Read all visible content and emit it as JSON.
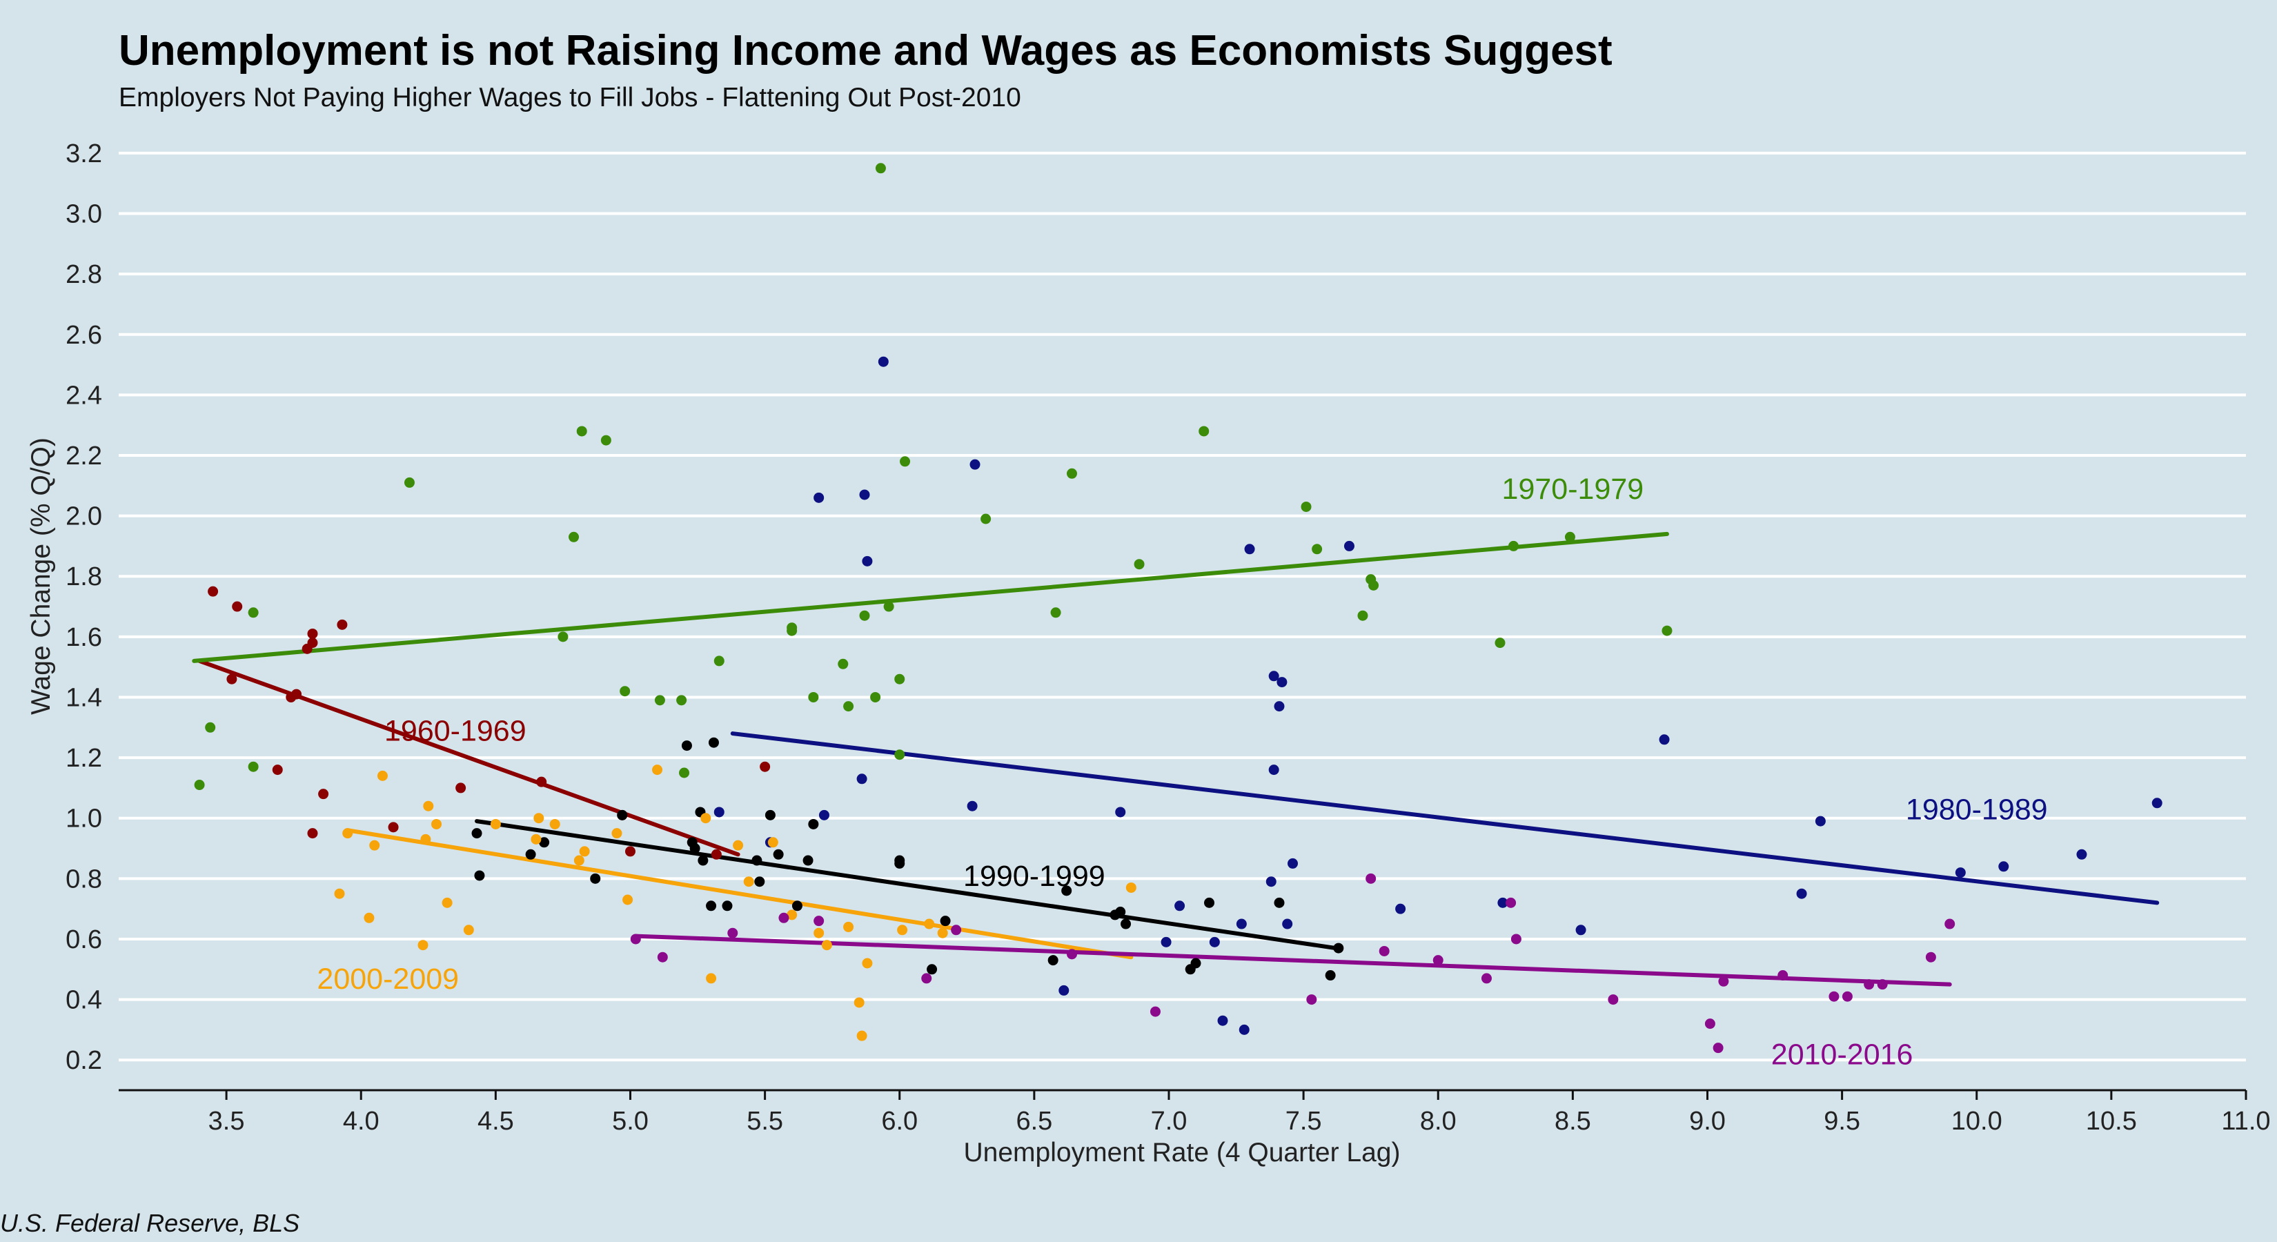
{
  "title": "Unemployment is not Raising Income and Wages as Economists Suggest",
  "subtitle": "Employers Not Paying Higher Wages to Fill Jobs - Flattening Out Post-2010",
  "source": "U.S. Federal Reserve, BLS",
  "chart_data": {
    "type": "scatter",
    "xlabel": "Unemployment Rate (4 Quarter Lag)",
    "ylabel": "Wage Change (% Q/Q)",
    "xlim": [
      3.1,
      11.0
    ],
    "ylim": [
      0.1,
      3.25
    ],
    "xticks": [
      "3.5",
      "4.0",
      "4.5",
      "5.0",
      "5.5",
      "6.0",
      "6.5",
      "7.0",
      "7.5",
      "8.0",
      "8.5",
      "9.0",
      "9.5",
      "10.0",
      "10.5",
      "11.0"
    ],
    "yticks": [
      "0.2",
      "0.4",
      "0.6",
      "0.8",
      "1.0",
      "1.2",
      "1.4",
      "1.6",
      "1.8",
      "2.0",
      "2.2",
      "2.4",
      "2.6",
      "2.8",
      "3.0",
      "3.2"
    ],
    "grid": "horizontal",
    "legend": "none",
    "series": [
      {
        "name": "1960-1969",
        "color": "#8b0000",
        "label_pos": [
          4.35,
          1.29
        ],
        "trend": [
          [
            3.4,
            1.52
          ],
          [
            5.4,
            0.88
          ]
        ],
        "points": [
          [
            3.45,
            1.75
          ],
          [
            3.52,
            1.46
          ],
          [
            3.54,
            1.7
          ],
          [
            3.69,
            1.16
          ],
          [
            3.74,
            1.4
          ],
          [
            3.76,
            1.41
          ],
          [
            3.8,
            1.56
          ],
          [
            3.82,
            1.58
          ],
          [
            3.82,
            1.61
          ],
          [
            3.82,
            0.95
          ],
          [
            3.86,
            1.08
          ],
          [
            3.93,
            1.64
          ],
          [
            4.12,
            0.97
          ],
          [
            4.37,
            1.1
          ],
          [
            4.67,
            1.12
          ],
          [
            4.97,
            1.01
          ],
          [
            5.0,
            0.89
          ],
          [
            5.32,
            0.88
          ],
          [
            5.5,
            1.17
          ]
        ]
      },
      {
        "name": "1970-1979",
        "color": "#3c8c0a",
        "label_pos": [
          8.5,
          2.09
        ],
        "trend": [
          [
            3.38,
            1.52
          ],
          [
            8.85,
            1.94
          ]
        ],
        "points": [
          [
            3.4,
            1.11
          ],
          [
            3.44,
            1.3
          ],
          [
            3.6,
            1.68
          ],
          [
            3.6,
            1.17
          ],
          [
            4.18,
            2.11
          ],
          [
            4.75,
            1.6
          ],
          [
            4.79,
            1.93
          ],
          [
            4.82,
            2.28
          ],
          [
            4.91,
            2.25
          ],
          [
            4.98,
            1.42
          ],
          [
            5.11,
            1.39
          ],
          [
            5.19,
            1.39
          ],
          [
            5.2,
            1.15
          ],
          [
            5.33,
            1.52
          ],
          [
            5.6,
            1.63
          ],
          [
            5.6,
            1.62
          ],
          [
            5.68,
            1.4
          ],
          [
            5.79,
            1.51
          ],
          [
            5.81,
            1.37
          ],
          [
            5.87,
            1.67
          ],
          [
            5.91,
            1.4
          ],
          [
            5.93,
            3.15
          ],
          [
            5.96,
            1.7
          ],
          [
            6.0,
            1.46
          ],
          [
            6.0,
            1.21
          ],
          [
            6.02,
            2.18
          ],
          [
            6.32,
            1.99
          ],
          [
            6.58,
            1.68
          ],
          [
            6.64,
            2.14
          ],
          [
            6.89,
            1.84
          ],
          [
            7.13,
            2.28
          ],
          [
            7.51,
            2.03
          ],
          [
            7.55,
            1.89
          ],
          [
            7.72,
            1.67
          ],
          [
            7.75,
            1.79
          ],
          [
            7.76,
            1.77
          ],
          [
            8.23,
            1.58
          ],
          [
            8.28,
            1.9
          ],
          [
            8.49,
            1.93
          ],
          [
            8.85,
            1.62
          ]
        ]
      },
      {
        "name": "1980-1989",
        "color": "#0d1080",
        "label_pos": [
          10.0,
          1.03
        ],
        "trend": [
          [
            5.38,
            1.28
          ],
          [
            10.67,
            0.72
          ]
        ],
        "points": [
          [
            5.33,
            1.02
          ],
          [
            5.52,
            0.92
          ],
          [
            5.7,
            2.06
          ],
          [
            5.72,
            1.01
          ],
          [
            5.86,
            1.13
          ],
          [
            5.87,
            2.07
          ],
          [
            5.88,
            1.85
          ],
          [
            5.94,
            2.51
          ],
          [
            6.28,
            2.17
          ],
          [
            6.27,
            1.04
          ],
          [
            6.61,
            0.43
          ],
          [
            6.82,
            1.02
          ],
          [
            7.04,
            0.71
          ],
          [
            7.3,
            1.89
          ],
          [
            7.38,
            0.79
          ],
          [
            7.39,
            1.47
          ],
          [
            7.41,
            1.37
          ],
          [
            7.42,
            1.45
          ],
          [
            7.39,
            1.16
          ],
          [
            7.2,
            0.33
          ],
          [
            7.28,
            0.3
          ],
          [
            7.27,
            0.65
          ],
          [
            7.44,
            0.65
          ],
          [
            7.46,
            0.85
          ],
          [
            7.67,
            1.9
          ],
          [
            7.86,
            0.7
          ],
          [
            8.24,
            0.72
          ],
          [
            8.53,
            0.63
          ],
          [
            8.84,
            1.26
          ],
          [
            9.35,
            0.75
          ],
          [
            9.42,
            0.99
          ],
          [
            9.94,
            0.82
          ],
          [
            10.1,
            0.84
          ],
          [
            10.39,
            0.88
          ],
          [
            10.67,
            1.05
          ],
          [
            6.99,
            0.59
          ],
          [
            7.17,
            0.59
          ]
        ]
      },
      {
        "name": "1990-1999",
        "color": "#000000",
        "label_pos": [
          6.5,
          0.81
        ],
        "trend": [
          [
            4.43,
            0.99
          ],
          [
            7.62,
            0.57
          ]
        ],
        "points": [
          [
            4.43,
            0.95
          ],
          [
            4.44,
            0.81
          ],
          [
            4.63,
            0.88
          ],
          [
            4.68,
            0.92
          ],
          [
            4.87,
            0.8
          ],
          [
            4.97,
            1.01
          ],
          [
            5.21,
            1.24
          ],
          [
            5.23,
            0.92
          ],
          [
            5.24,
            0.9
          ],
          [
            5.26,
            1.02
          ],
          [
            5.27,
            0.86
          ],
          [
            5.3,
            0.71
          ],
          [
            5.31,
            1.25
          ],
          [
            5.36,
            0.71
          ],
          [
            5.47,
            0.86
          ],
          [
            5.48,
            0.79
          ],
          [
            5.52,
            1.01
          ],
          [
            5.55,
            0.88
          ],
          [
            5.62,
            0.71
          ],
          [
            5.66,
            0.86
          ],
          [
            5.68,
            0.98
          ],
          [
            6.0,
            0.86
          ],
          [
            6.0,
            0.85
          ],
          [
            6.12,
            0.5
          ],
          [
            6.17,
            0.66
          ],
          [
            6.57,
            0.53
          ],
          [
            6.62,
            0.76
          ],
          [
            6.8,
            0.68
          ],
          [
            6.82,
            0.69
          ],
          [
            6.84,
            0.65
          ],
          [
            7.08,
            0.5
          ],
          [
            7.1,
            0.52
          ],
          [
            7.15,
            0.72
          ],
          [
            7.41,
            0.72
          ],
          [
            7.6,
            0.48
          ],
          [
            7.63,
            0.57
          ]
        ]
      },
      {
        "name": "2000-2009",
        "color": "#f7a30a",
        "label_pos": [
          4.1,
          0.47
        ],
        "trend": [
          [
            3.95,
            0.96
          ],
          [
            6.86,
            0.54
          ]
        ],
        "points": [
          [
            3.92,
            0.75
          ],
          [
            3.95,
            0.95
          ],
          [
            4.03,
            0.67
          ],
          [
            4.05,
            0.91
          ],
          [
            4.08,
            1.14
          ],
          [
            4.23,
            0.58
          ],
          [
            4.24,
            0.93
          ],
          [
            4.25,
            1.04
          ],
          [
            4.28,
            0.98
          ],
          [
            4.32,
            0.72
          ],
          [
            4.4,
            0.63
          ],
          [
            4.5,
            0.98
          ],
          [
            4.65,
            0.93
          ],
          [
            4.66,
            1.0
          ],
          [
            4.72,
            0.98
          ],
          [
            4.81,
            0.86
          ],
          [
            4.83,
            0.89
          ],
          [
            4.95,
            0.95
          ],
          [
            4.99,
            0.73
          ],
          [
            5.1,
            1.16
          ],
          [
            5.28,
            1.0
          ],
          [
            5.3,
            0.47
          ],
          [
            5.4,
            0.91
          ],
          [
            5.44,
            0.79
          ],
          [
            5.53,
            0.92
          ],
          [
            5.6,
            0.68
          ],
          [
            5.7,
            0.62
          ],
          [
            5.73,
            0.58
          ],
          [
            5.81,
            0.64
          ],
          [
            5.85,
            0.39
          ],
          [
            5.86,
            0.28
          ],
          [
            5.88,
            0.52
          ],
          [
            6.01,
            0.63
          ],
          [
            6.11,
            0.65
          ],
          [
            6.16,
            0.62
          ],
          [
            6.86,
            0.77
          ]
        ]
      },
      {
        "name": "2010-2016",
        "color": "#8b0a8c",
        "label_pos": [
          9.5,
          0.22
        ],
        "trend": [
          [
            5.02,
            0.61
          ],
          [
            9.9,
            0.45
          ]
        ],
        "points": [
          [
            5.02,
            0.6
          ],
          [
            5.12,
            0.54
          ],
          [
            5.38,
            0.62
          ],
          [
            5.57,
            0.67
          ],
          [
            5.7,
            0.66
          ],
          [
            6.1,
            0.47
          ],
          [
            6.21,
            0.63
          ],
          [
            6.64,
            0.55
          ],
          [
            6.95,
            0.36
          ],
          [
            7.53,
            0.4
          ],
          [
            7.75,
            0.8
          ],
          [
            7.8,
            0.56
          ],
          [
            8.0,
            0.53
          ],
          [
            8.18,
            0.47
          ],
          [
            8.27,
            0.72
          ],
          [
            8.29,
            0.6
          ],
          [
            8.65,
            0.4
          ],
          [
            9.01,
            0.32
          ],
          [
            9.04,
            0.24
          ],
          [
            9.06,
            0.46
          ],
          [
            9.28,
            0.48
          ],
          [
            9.47,
            0.41
          ],
          [
            9.52,
            0.41
          ],
          [
            9.6,
            0.45
          ],
          [
            9.65,
            0.45
          ],
          [
            9.83,
            0.54
          ],
          [
            9.9,
            0.65
          ]
        ]
      }
    ]
  }
}
